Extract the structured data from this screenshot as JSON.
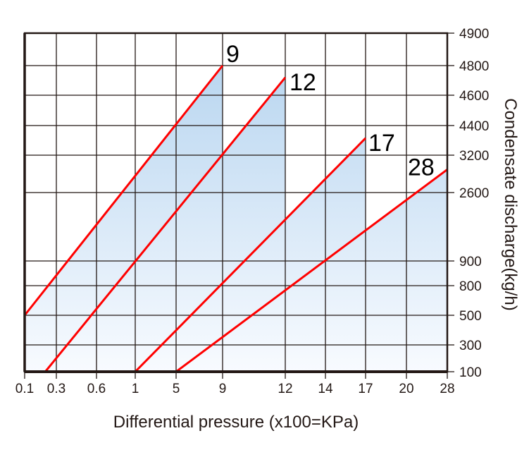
{
  "chart_data": {
    "type": "line",
    "title": "",
    "xlabel": "Differential pressure (x100=KPa)",
    "ylabel": "Condensate discharge(kg/h)",
    "x_ticks": [
      "0.1",
      "0.3",
      "0.6",
      "1",
      "5",
      "9",
      "12",
      "14",
      "17",
      "20",
      "28"
    ],
    "y_ticks": [
      "4900",
      "4800",
      "4600",
      "4400",
      "3200",
      "2600",
      "900",
      "800",
      "500",
      "300",
      "100"
    ],
    "x_scale": "non-uniform (tick-ordinal)",
    "y_scale": "non-uniform (tick-ordinal)",
    "grid": true,
    "fill_under_series": true,
    "series": [
      {
        "name": "9",
        "points": [
          [
            0.1,
            500
          ],
          [
            9,
            4800
          ]
        ]
      },
      {
        "name": "12",
        "points": [
          [
            0.23,
            100
          ],
          [
            12,
            4720
          ]
        ]
      },
      {
        "name": "17",
        "points": [
          [
            1,
            100
          ],
          [
            17,
            3890
          ]
        ]
      },
      {
        "name": "28",
        "points": [
          [
            5,
            100
          ],
          [
            28,
            2970
          ]
        ]
      }
    ],
    "colors": {
      "line": "#ff0000",
      "fill_top": "#b9d6f0",
      "fill_bottom": "#f8fbff",
      "grid": "#231815"
    }
  }
}
